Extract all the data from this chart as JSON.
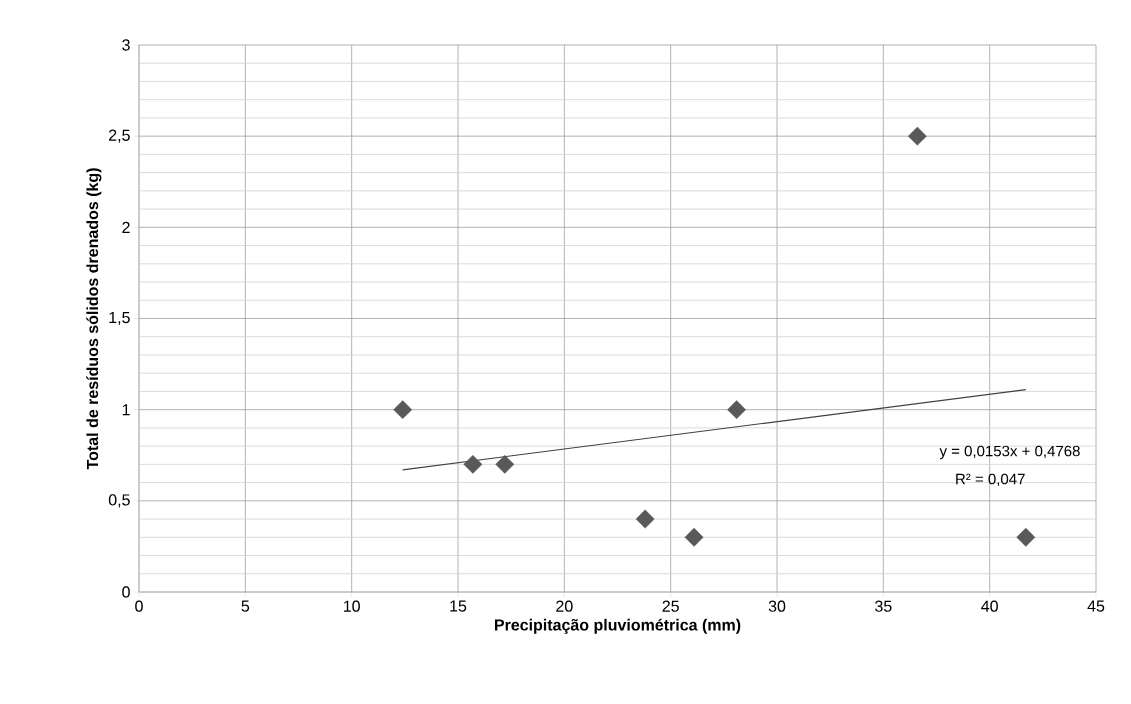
{
  "chart_data": {
    "type": "scatter",
    "xlabel": "Precipitação pluviométrica (mm)",
    "ylabel": "Total de resíduos sólidos drenados (kg)",
    "xlim": [
      0,
      45
    ],
    "ylim": [
      0,
      3
    ],
    "xticks": [
      0,
      5,
      10,
      15,
      20,
      25,
      30,
      35,
      40,
      45
    ],
    "yticks": [
      0,
      {
        "value": 0.5,
        "label": "0,5"
      },
      1,
      {
        "value": 1.5,
        "label": "1,5"
      },
      2,
      {
        "value": 2.5,
        "label": "2,5"
      },
      3
    ],
    "grid": true,
    "series": [
      {
        "marker": "diamond",
        "color": "#595959",
        "x": [
          12.4,
          15.7,
          17.2,
          23.8,
          26.1,
          28.1,
          36.6,
          41.7
        ],
        "values": [
          1.0,
          0.7,
          0.7,
          0.4,
          0.3,
          1.0,
          2.5,
          0.3
        ]
      },
      {
        "type": "line",
        "marker": "none",
        "color": "#404040",
        "x": [
          12.4,
          41.7
        ],
        "values": [
          0.67,
          1.11
        ]
      }
    ],
    "annotations": [
      "y = 0,0153x + 0,4768",
      "R² = 0,047"
    ]
  }
}
